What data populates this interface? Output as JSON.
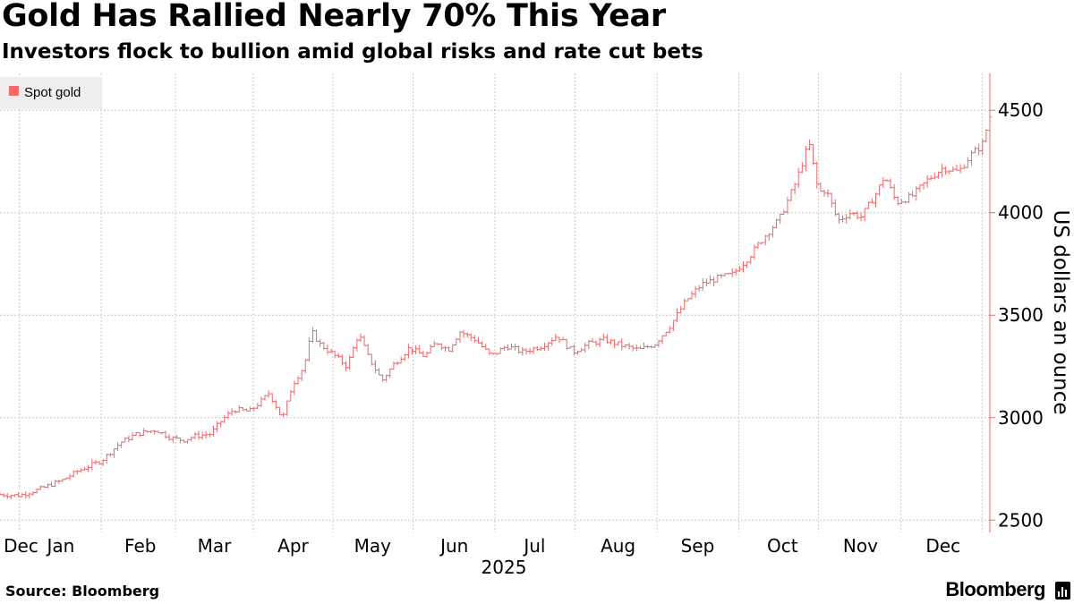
{
  "header": {
    "title": "Gold Has Rallied Nearly 70% This Year",
    "subtitle": "Investors flock to bullion amid global risks and rate cut bets"
  },
  "footer": {
    "source": "Source: Bloomberg",
    "brand": "Bloomberg"
  },
  "colors": {
    "series": "#e8696b",
    "legend_swatch": "#f46a6e",
    "grid": "#c8c8c8",
    "axis": "#e8696b",
    "text": "#000000",
    "legend_bg": "#eeeeee"
  },
  "chart_data": {
    "type": "ohlc",
    "title": "Gold Has Rallied Nearly 70% This Year",
    "subtitle": "Investors flock to bullion amid global risks and rate cut bets",
    "legend": [
      "Spot gold"
    ],
    "legend_position": "top-left",
    "xlabel": "2025",
    "ylabel": "US dollars an ounce",
    "y_axis_side": "right",
    "ylim": [
      2440,
      4680
    ],
    "yticks": [
      2500,
      3000,
      3500,
      4000,
      4500
    ],
    "grid": true,
    "x_range": [
      0,
      12.7
    ],
    "xticks": [
      {
        "label": "Dec",
        "pos": 0.27
      },
      {
        "label": "Jan",
        "pos": 0.78
      },
      {
        "label": "Feb",
        "pos": 1.8
      },
      {
        "label": "Mar",
        "pos": 2.75
      },
      {
        "label": "Apr",
        "pos": 3.76
      },
      {
        "label": "May",
        "pos": 4.78
      },
      {
        "label": "Jun",
        "pos": 5.83
      },
      {
        "label": "Jul",
        "pos": 6.86
      },
      {
        "label": "Aug",
        "pos": 7.93
      },
      {
        "label": "Sep",
        "pos": 8.95
      },
      {
        "label": "Oct",
        "pos": 10.04
      },
      {
        "label": "Nov",
        "pos": 11.04
      },
      {
        "label": "Dec",
        "pos": 12.1
      }
    ],
    "month_gridlines": [
      0.25,
      1.3,
      2.25,
      3.25,
      4.27,
      5.3,
      6.35,
      7.38,
      8.43,
      9.48,
      10.5,
      11.56,
      12.6
    ],
    "series": [
      {
        "name": "Spot gold",
        "anchors": [
          [
            0.0,
            2625
          ],
          [
            0.25,
            2620
          ],
          [
            0.5,
            2650
          ],
          [
            0.8,
            2695
          ],
          [
            1.0,
            2740
          ],
          [
            1.3,
            2790
          ],
          [
            1.55,
            2880
          ],
          [
            1.75,
            2920
          ],
          [
            2.0,
            2940
          ],
          [
            2.2,
            2900
          ],
          [
            2.35,
            2890
          ],
          [
            2.5,
            2910
          ],
          [
            2.7,
            2920
          ],
          [
            2.85,
            2990
          ],
          [
            3.0,
            3040
          ],
          [
            3.2,
            3030
          ],
          [
            3.35,
            3080
          ],
          [
            3.45,
            3120
          ],
          [
            3.55,
            3050
          ],
          [
            3.62,
            2990
          ],
          [
            3.75,
            3160
          ],
          [
            3.9,
            3250
          ],
          [
            4.0,
            3420
          ],
          [
            4.1,
            3360
          ],
          [
            4.3,
            3300
          ],
          [
            4.45,
            3250
          ],
          [
            4.6,
            3410
          ],
          [
            4.72,
            3300
          ],
          [
            4.9,
            3180
          ],
          [
            5.05,
            3260
          ],
          [
            5.25,
            3340
          ],
          [
            5.45,
            3300
          ],
          [
            5.6,
            3370
          ],
          [
            5.75,
            3330
          ],
          [
            5.9,
            3420
          ],
          [
            6.1,
            3380
          ],
          [
            6.3,
            3300
          ],
          [
            6.5,
            3350
          ],
          [
            6.7,
            3320
          ],
          [
            6.95,
            3350
          ],
          [
            7.15,
            3400
          ],
          [
            7.35,
            3320
          ],
          [
            7.55,
            3360
          ],
          [
            7.75,
            3380
          ],
          [
            8.0,
            3350
          ],
          [
            8.2,
            3330
          ],
          [
            8.4,
            3360
          ],
          [
            8.6,
            3450
          ],
          [
            8.8,
            3570
          ],
          [
            9.0,
            3650
          ],
          [
            9.2,
            3680
          ],
          [
            9.4,
            3700
          ],
          [
            9.6,
            3780
          ],
          [
            9.8,
            3880
          ],
          [
            10.0,
            3970
          ],
          [
            10.2,
            4140
          ],
          [
            10.38,
            4340
          ],
          [
            10.5,
            4100
          ],
          [
            10.6,
            4110
          ],
          [
            10.75,
            3960
          ],
          [
            10.9,
            4000
          ],
          [
            11.05,
            3980
          ],
          [
            11.25,
            4100
          ],
          [
            11.35,
            4180
          ],
          [
            11.5,
            4050
          ],
          [
            11.7,
            4080
          ],
          [
            11.9,
            4160
          ],
          [
            12.1,
            4220
          ],
          [
            12.3,
            4200
          ],
          [
            12.45,
            4280
          ],
          [
            12.6,
            4330
          ],
          [
            12.7,
            4470
          ]
        ]
      }
    ]
  }
}
